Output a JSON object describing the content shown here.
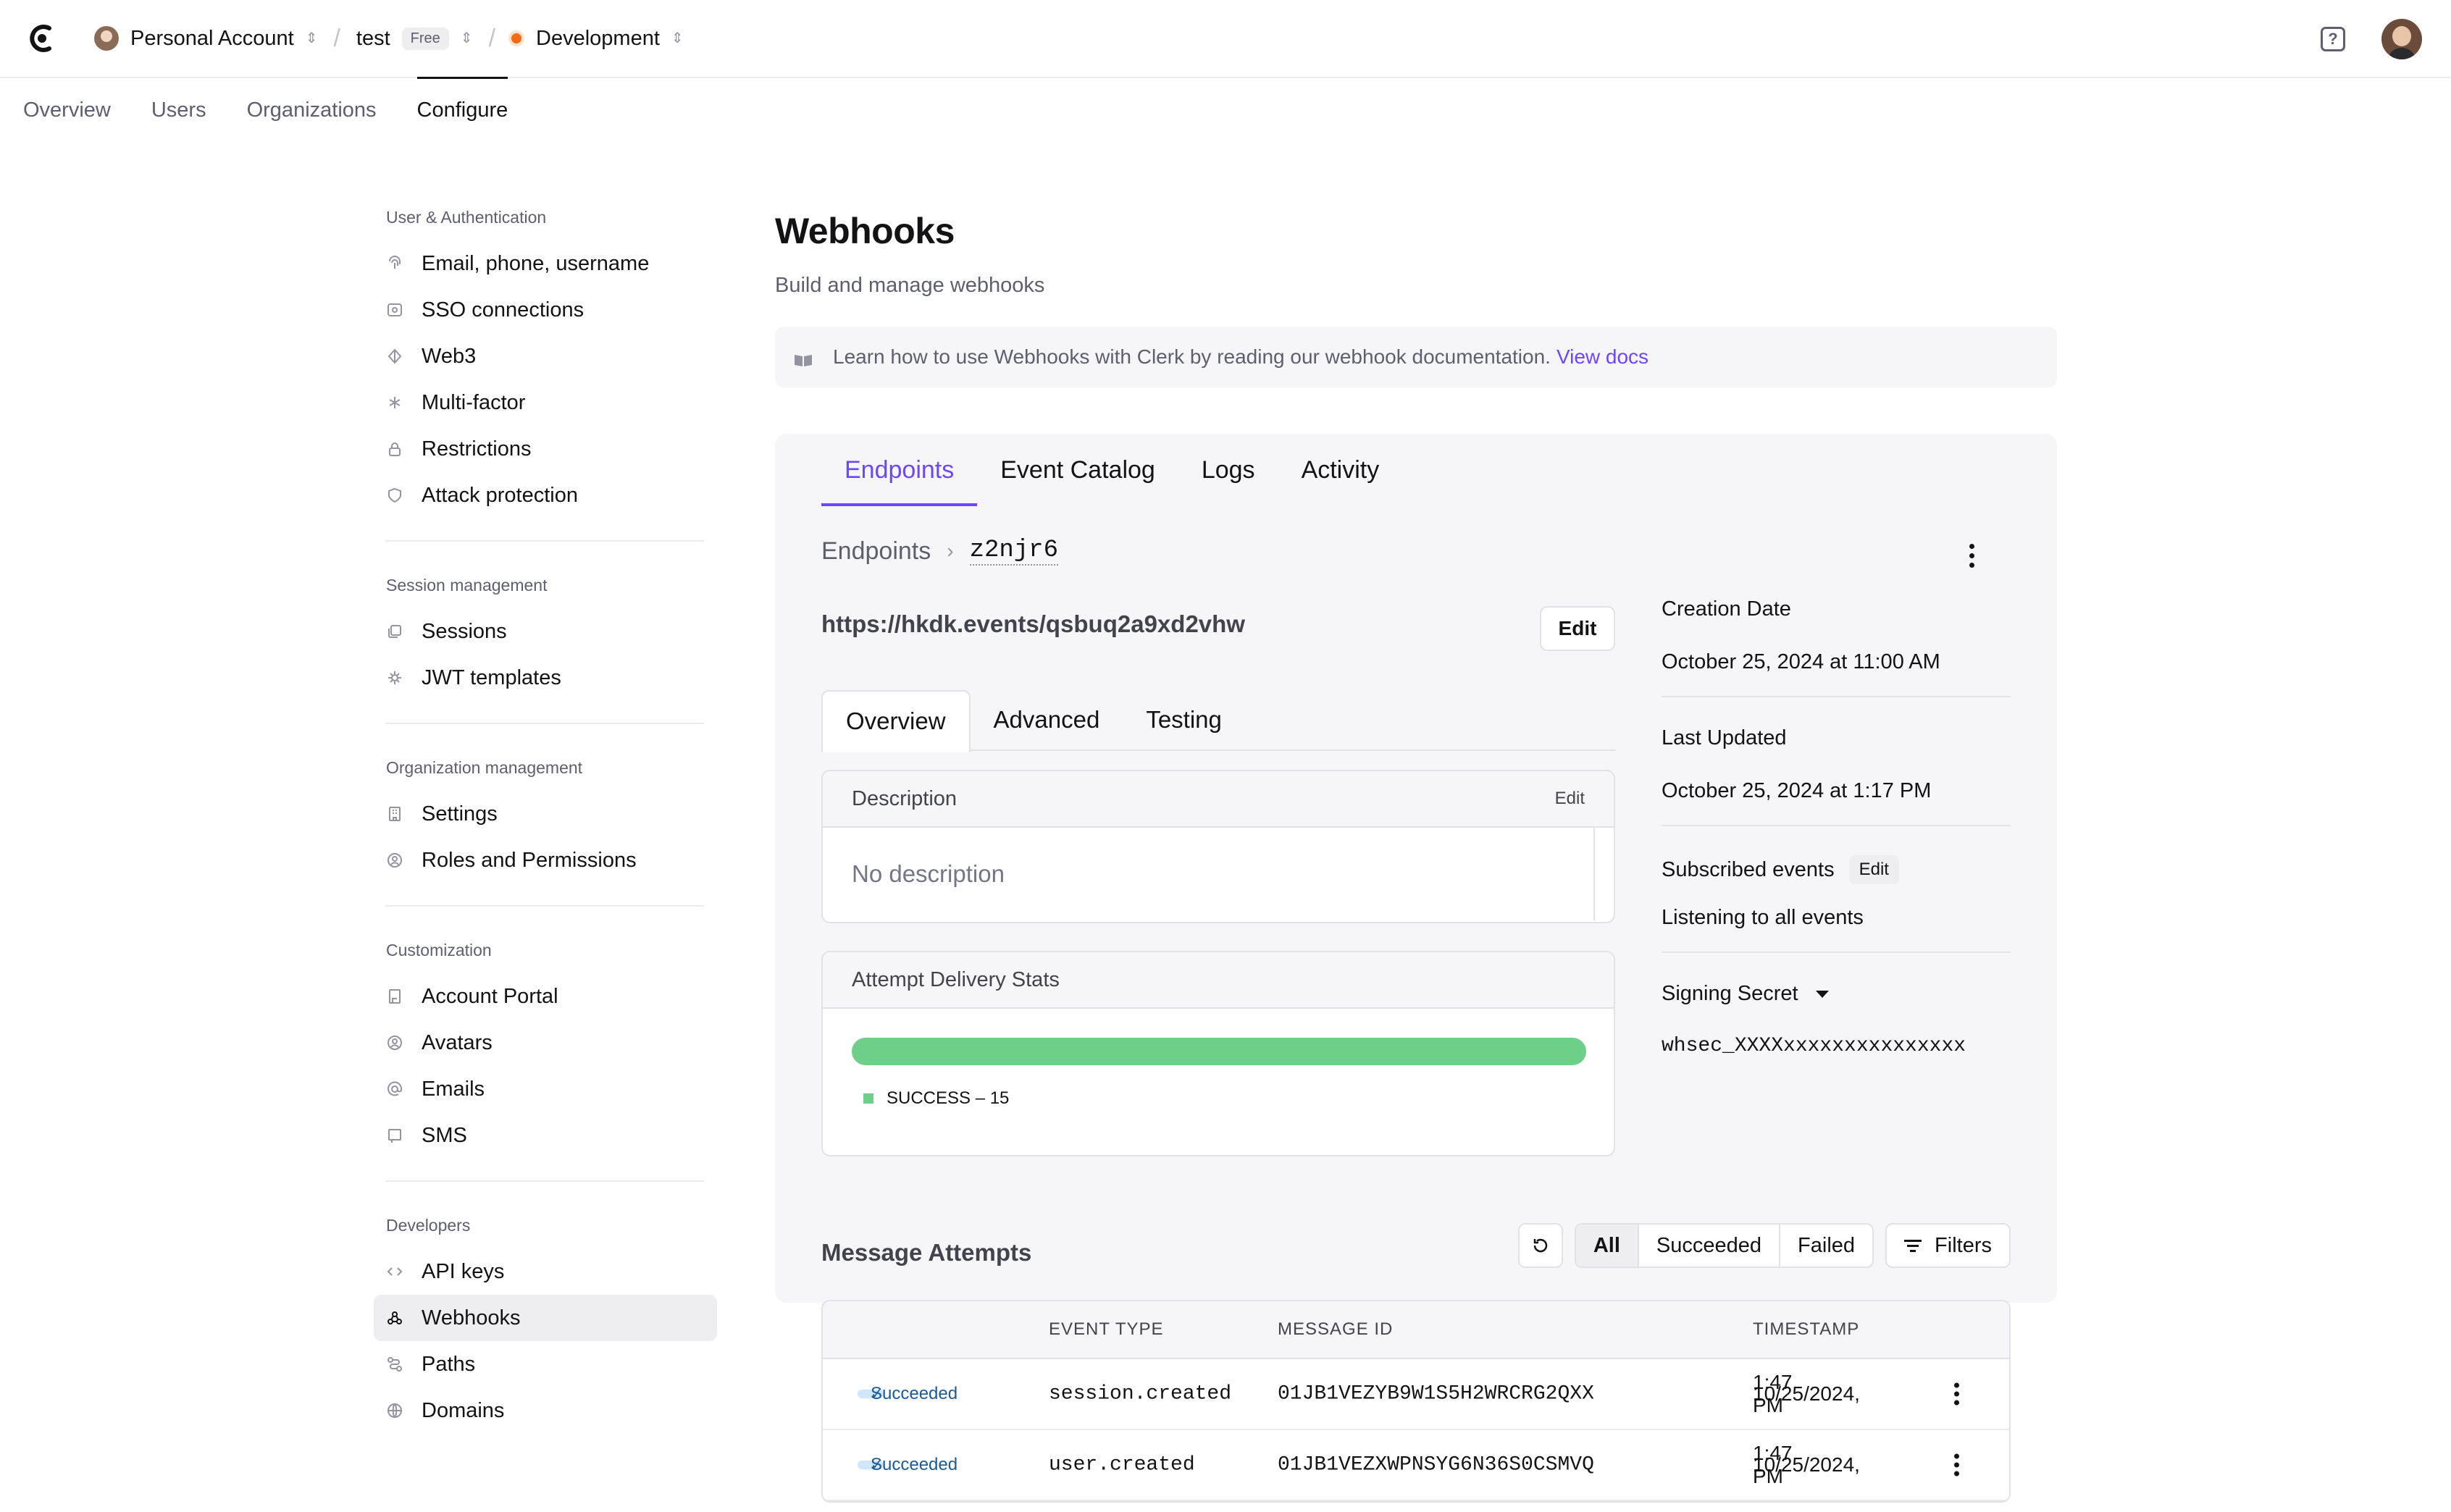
{
  "topbar": {
    "account": "Personal Account",
    "app": "test",
    "app_badge": "Free",
    "environment": "Development",
    "env_color": "#f36b16"
  },
  "nav": {
    "tabs": [
      "Overview",
      "Users",
      "Organizations",
      "Configure"
    ],
    "active": "Configure"
  },
  "sidebar": {
    "sections": [
      {
        "heading": "User & Authentication",
        "items": [
          {
            "label": "Email, phone, username",
            "icon": "fingerprint-icon"
          },
          {
            "label": "SSO connections",
            "icon": "sso-icon"
          },
          {
            "label": "Web3",
            "icon": "web3-icon"
          },
          {
            "label": "Multi-factor",
            "icon": "asterisk-icon"
          },
          {
            "label": "Restrictions",
            "icon": "lock-icon"
          },
          {
            "label": "Attack protection",
            "icon": "shield-icon"
          }
        ]
      },
      {
        "heading": "Session management",
        "items": [
          {
            "label": "Sessions",
            "icon": "sessions-icon"
          },
          {
            "label": "JWT templates",
            "icon": "jwt-icon"
          }
        ]
      },
      {
        "heading": "Organization management",
        "items": [
          {
            "label": "Settings",
            "icon": "building-icon"
          },
          {
            "label": "Roles and Permissions",
            "icon": "roles-icon"
          }
        ]
      },
      {
        "heading": "Customization",
        "items": [
          {
            "label": "Account Portal",
            "icon": "portal-icon"
          },
          {
            "label": "Avatars",
            "icon": "avatar-icon"
          },
          {
            "label": "Emails",
            "icon": "at-icon"
          },
          {
            "label": "SMS",
            "icon": "sms-icon"
          }
        ]
      },
      {
        "heading": "Developers",
        "items": [
          {
            "label": "API keys",
            "icon": "code-icon"
          },
          {
            "label": "Webhooks",
            "icon": "webhook-icon",
            "active": true
          },
          {
            "label": "Paths",
            "icon": "paths-icon"
          },
          {
            "label": "Domains",
            "icon": "globe-icon"
          }
        ]
      }
    ]
  },
  "page": {
    "title": "Webhooks",
    "subtitle": "Build and manage webhooks",
    "banner_text": "Learn how to use Webhooks with Clerk by reading our webhook documentation.",
    "banner_link": "View docs"
  },
  "panel": {
    "tabs": [
      "Endpoints",
      "Event Catalog",
      "Logs",
      "Activity"
    ],
    "active_tab": "Endpoints",
    "breadcrumb_root": "Endpoints",
    "endpoint_id": "z2njr6",
    "url": "https://hkdk.events/qsbuq2a9xd2vhw",
    "edit_label": "Edit",
    "subtabs": [
      "Overview",
      "Advanced",
      "Testing"
    ],
    "active_subtab": "Overview",
    "description": {
      "heading": "Description",
      "edit": "Edit",
      "value": "No description"
    },
    "stats": {
      "heading": "Attempt Delivery Stats",
      "success_fraction": 1.0,
      "legend": "SUCCESS – 15",
      "success_color": "#6ecf88"
    },
    "meta": {
      "creation_label": "Creation Date",
      "creation_value": "October 25, 2024 at 11:00 AM",
      "updated_label": "Last Updated",
      "updated_value": "October 25, 2024 at 1:17 PM",
      "events_label": "Subscribed events",
      "events_edit": "Edit",
      "events_value": "Listening to all events",
      "secret_label": "Signing Secret",
      "secret_value": "whsec_XXXXxxxxxxxxxxxxxxx"
    },
    "attempts": {
      "title": "Message Attempts",
      "filters": [
        "All",
        "Succeeded",
        "Failed"
      ],
      "active_filter": "All",
      "filters_button": "Filters",
      "columns": [
        "EVENT TYPE",
        "MESSAGE ID",
        "TIMESTAMP"
      ],
      "rows": [
        {
          "status": "Succeeded",
          "event": "session.created",
          "id": "01JB1VEZYB9W1S5H2WRCRG2QXX",
          "ts_date": "10/25/2024,",
          "ts_time": "1:47 PM"
        },
        {
          "status": "Succeeded",
          "event": "user.created",
          "id": "01JB1VEZXWPNSYG6N36S0CSMVQ",
          "ts_date": "10/25/2024,",
          "ts_time": "1:47 PM"
        }
      ]
    }
  }
}
